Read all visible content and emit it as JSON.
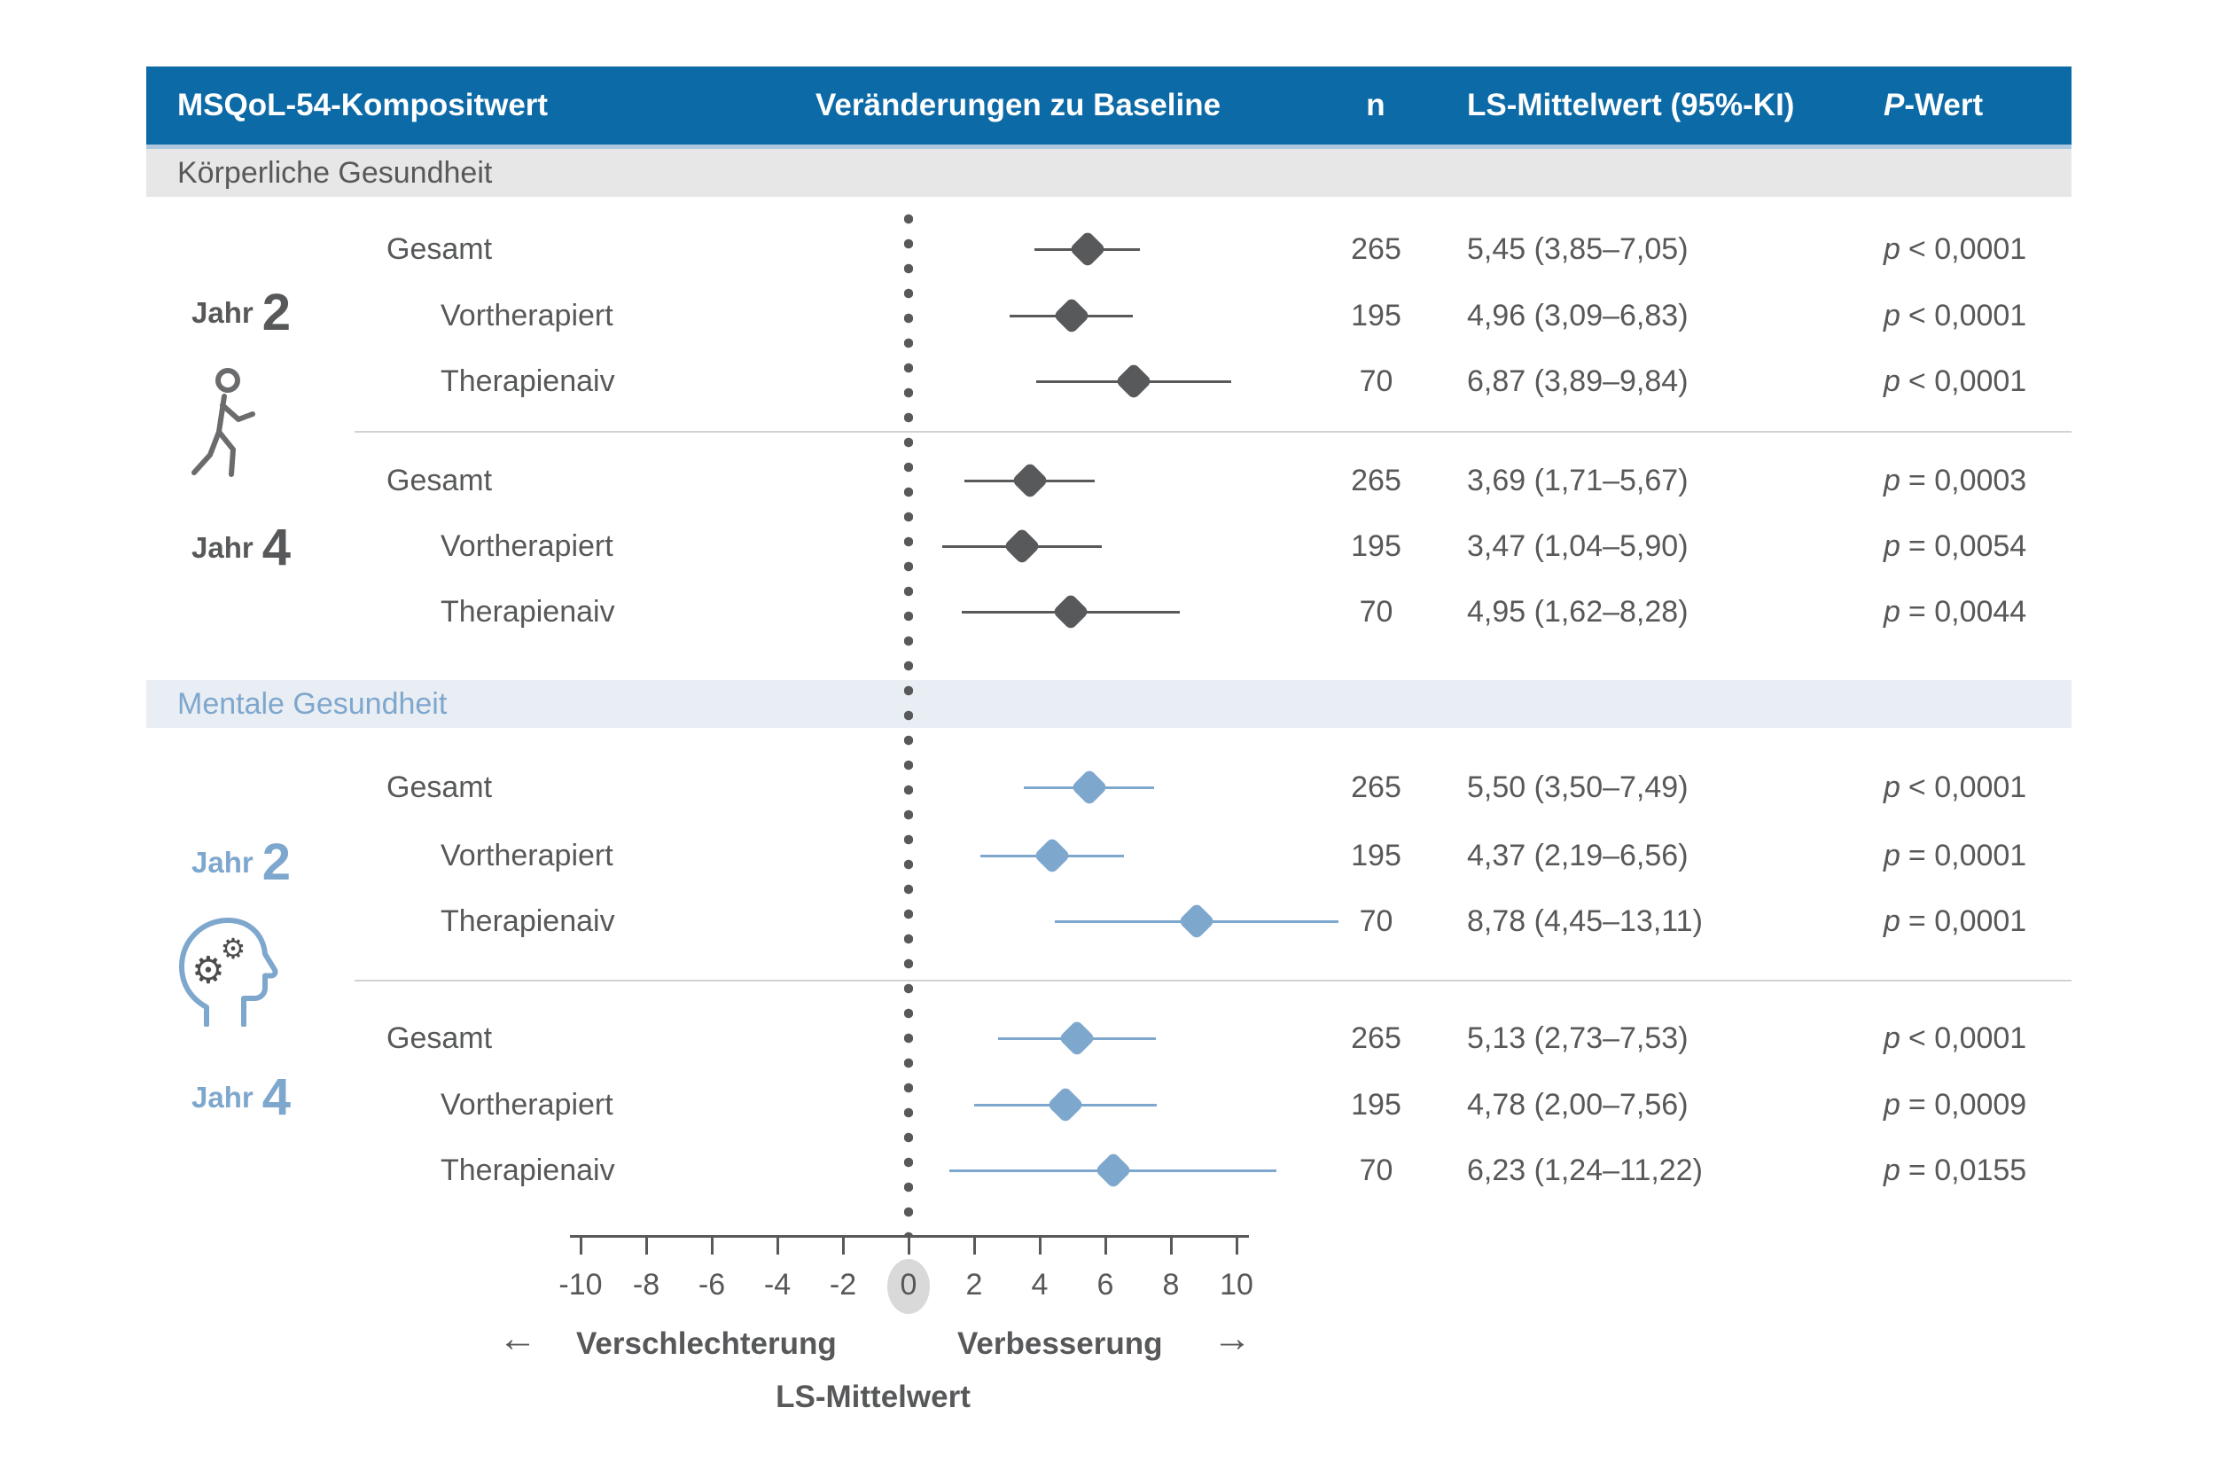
{
  "header": {
    "col1": "MSQoL-54-Kompositwert",
    "col2": "Veränderungen zu Baseline",
    "col3": "n",
    "col4": "LS-Mittelwert (95%-KI)",
    "col5_italic": "P",
    "col5_rest": "-Wert"
  },
  "colors": {
    "header_bg": "#0c6aa6",
    "physical_band_bg": "#e7e7e7",
    "mental_band_bg": "#e9edf4",
    "dark": "#58595b",
    "blue": "#7ea7cd"
  },
  "chart_data": {
    "type": "scatter",
    "variant": "forest",
    "title": "MSQoL-54-Kompositwert — Veränderungen zu Baseline",
    "xlabel": "LS-Mittelwert",
    "xlim": [
      -10,
      10
    ],
    "x_ticks": [
      -10,
      -8,
      -6,
      -4,
      -2,
      0,
      2,
      4,
      6,
      8,
      10
    ],
    "reference_line": 0,
    "grid": false,
    "direction_labels": {
      "left_arrow": "←",
      "left": "Verschlechterung",
      "right": "Verbesserung",
      "right_arrow": "→"
    },
    "series": [
      {
        "name": "Körperliche Gesundheit",
        "color": "#58595b",
        "icon": "walking-person",
        "groups": [
          {
            "year_word": "Jahr",
            "year_num": "2",
            "points": [
              {
                "label": "Gesamt",
                "n": 265,
                "mean": 5.45,
                "ci_low": 3.85,
                "ci_high": 7.05,
                "ci_text": "5,45 (3,85–7,05)",
                "p_label": "p",
                "p_text": "< 0,0001"
              },
              {
                "label": "Vortherapiert",
                "n": 195,
                "mean": 4.96,
                "ci_low": 3.09,
                "ci_high": 6.83,
                "ci_text": "4,96 (3,09–6,83)",
                "p_label": "p",
                "p_text": "< 0,0001"
              },
              {
                "label": "Therapienaiv",
                "n": 70,
                "mean": 6.87,
                "ci_low": 3.89,
                "ci_high": 9.84,
                "ci_text": "6,87 (3,89–9,84)",
                "p_label": "p",
                "p_text": "< 0,0001"
              }
            ]
          },
          {
            "year_word": "Jahr",
            "year_num": "4",
            "points": [
              {
                "label": "Gesamt",
                "n": 265,
                "mean": 3.69,
                "ci_low": 1.71,
                "ci_high": 5.67,
                "ci_text": "3,69 (1,71–5,67)",
                "p_label": "p",
                "p_text": "= 0,0003"
              },
              {
                "label": "Vortherapiert",
                "n": 195,
                "mean": 3.47,
                "ci_low": 1.04,
                "ci_high": 5.9,
                "ci_text": "3,47 (1,04–5,90)",
                "p_label": "p",
                "p_text": "= 0,0054"
              },
              {
                "label": "Therapienaiv",
                "n": 70,
                "mean": 4.95,
                "ci_low": 1.62,
                "ci_high": 8.28,
                "ci_text": "4,95 (1,62–8,28)",
                "p_label": "p",
                "p_text": "= 0,0044"
              }
            ]
          }
        ]
      },
      {
        "name": "Mentale Gesundheit",
        "color": "#7ea7cd",
        "icon": "head-with-gears",
        "groups": [
          {
            "year_word": "Jahr",
            "year_num": "2",
            "points": [
              {
                "label": "Gesamt",
                "n": 265,
                "mean": 5.5,
                "ci_low": 3.5,
                "ci_high": 7.49,
                "ci_text": "5,50 (3,50–7,49)",
                "p_label": "p",
                "p_text": "< 0,0001"
              },
              {
                "label": "Vortherapiert",
                "n": 195,
                "mean": 4.37,
                "ci_low": 2.19,
                "ci_high": 6.56,
                "ci_text": "4,37 (2,19–6,56)",
                "p_label": "p",
                "p_text": "= 0,0001"
              },
              {
                "label": "Therapienaiv",
                "n": 70,
                "mean": 8.78,
                "ci_low": 4.45,
                "ci_high": 13.11,
                "ci_text": "8,78 (4,45–13,11)",
                "p_label": "p",
                "p_text": "= 0,0001"
              }
            ]
          },
          {
            "year_word": "Jahr",
            "year_num": "4",
            "points": [
              {
                "label": "Gesamt",
                "n": 265,
                "mean": 5.13,
                "ci_low": 2.73,
                "ci_high": 7.53,
                "ci_text": "5,13 (2,73–7,53)",
                "p_label": "p",
                "p_text": "< 0,0001"
              },
              {
                "label": "Vortherapiert",
                "n": 195,
                "mean": 4.78,
                "ci_low": 2.0,
                "ci_high": 7.56,
                "ci_text": "4,78 (2,00–7,56)",
                "p_label": "p",
                "p_text": "= 0,0009"
              },
              {
                "label": "Therapienaiv",
                "n": 70,
                "mean": 6.23,
                "ci_low": 1.24,
                "ci_high": 11.22,
                "ci_text": "6,23 (1,24–11,22)",
                "p_label": "p",
                "p_text": "= 0,0155"
              }
            ]
          }
        ]
      }
    ]
  }
}
